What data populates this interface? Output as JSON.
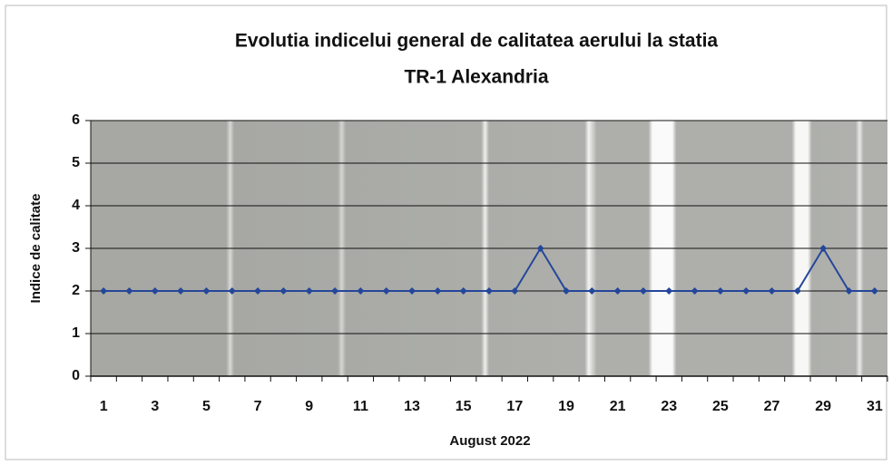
{
  "chart_data": {
    "type": "line",
    "title": [
      "Evolutia indicelui general de calitatea aerului la statia",
      "TR-1 Alexandria"
    ],
    "xlabel": "August 2022",
    "ylabel": "Indice de calitate",
    "categories": [
      1,
      null,
      3,
      null,
      5,
      null,
      7,
      null,
      9,
      null,
      11,
      null,
      13,
      null,
      15,
      null,
      17,
      null,
      19,
      null,
      21,
      null,
      23,
      null,
      25,
      null,
      27,
      null,
      29,
      null,
      31
    ],
    "series": [
      {
        "color": "#24479a",
        "values": [
          2,
          2,
          2,
          2,
          2,
          2,
          2,
          2,
          2,
          2,
          2,
          2,
          2,
          2,
          2,
          2,
          2,
          3,
          2,
          2,
          2,
          2,
          2,
          2,
          2,
          2,
          2,
          2,
          3,
          2,
          2
        ]
      }
    ],
    "ylim": [
      0,
      6
    ],
    "yticks": [
      0,
      1,
      2,
      3,
      4,
      5,
      6
    ],
    "grid": true
  }
}
